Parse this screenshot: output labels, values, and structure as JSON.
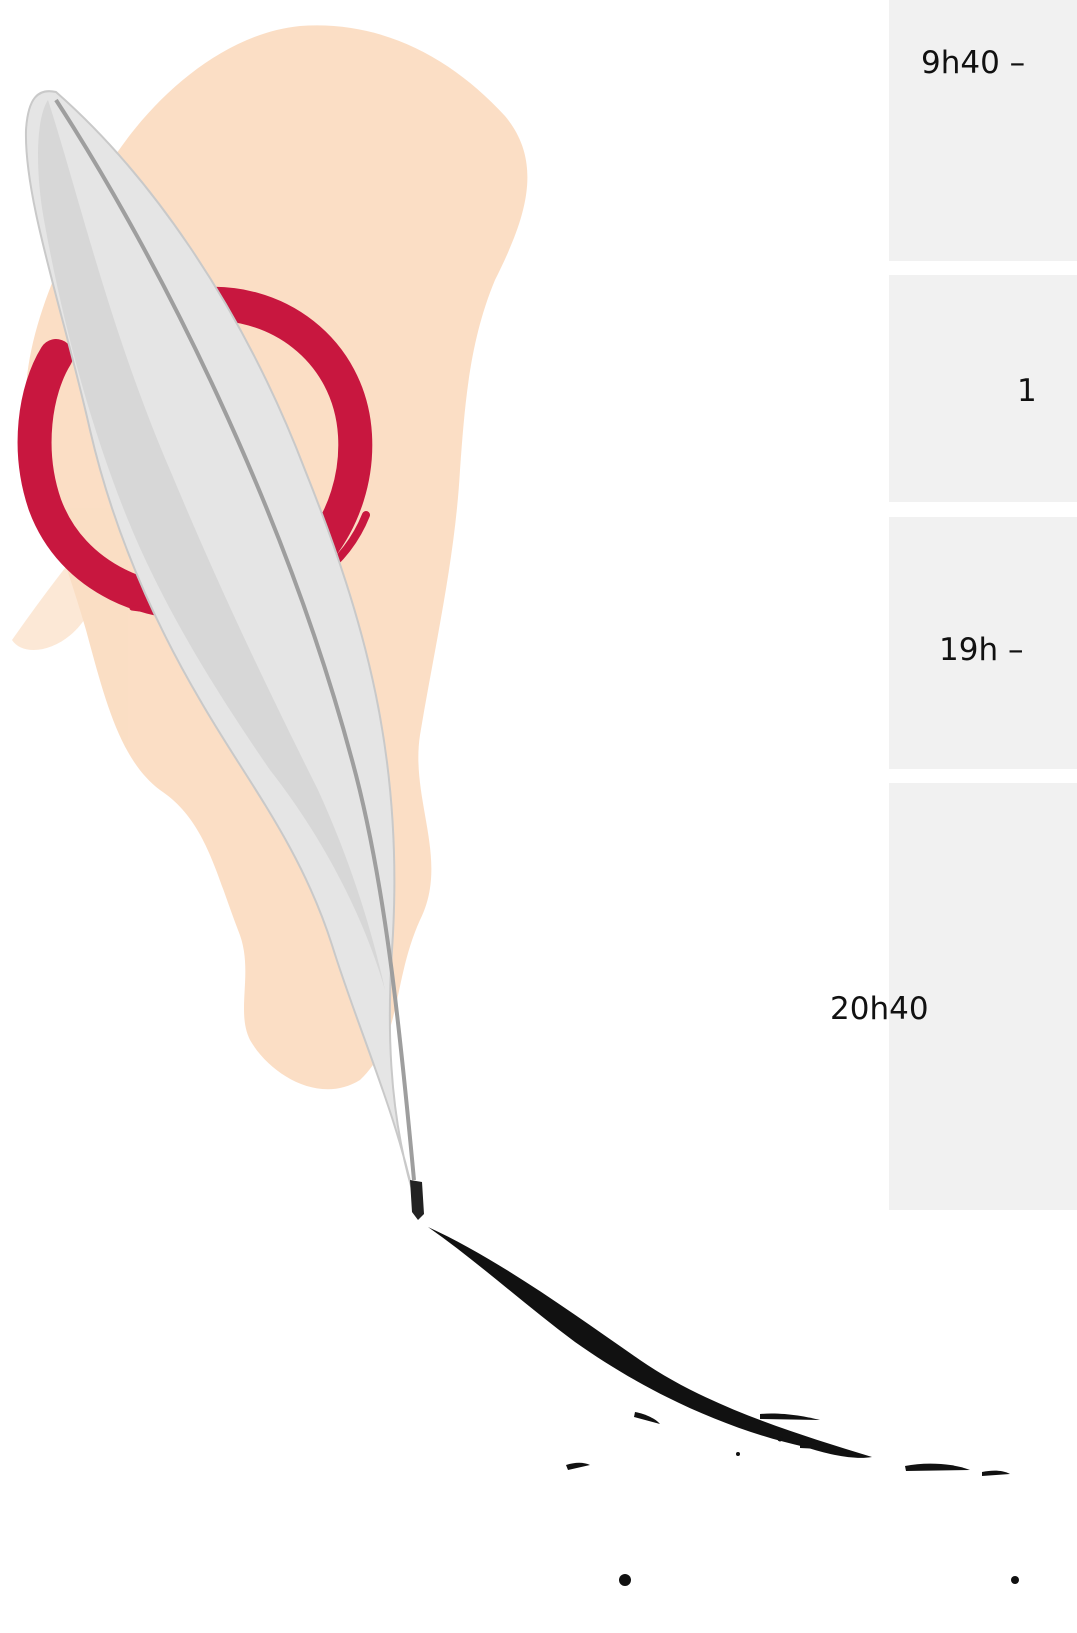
{
  "schedule": {
    "items": [
      {
        "time": "9h40 –"
      },
      {
        "time": "1"
      },
      {
        "time": "19h –"
      },
      {
        "time": "20h40"
      }
    ]
  },
  "colors": {
    "panel": "#f1f1f1",
    "accent_red": "#c8173f",
    "wash": "#f8c79b",
    "ink": "#111111",
    "feather": "#d8d8d8"
  },
  "illustration": {
    "feather": "feather-quill-icon",
    "circle": "enso-circle-icon",
    "ink": "ink-splash-icon"
  }
}
